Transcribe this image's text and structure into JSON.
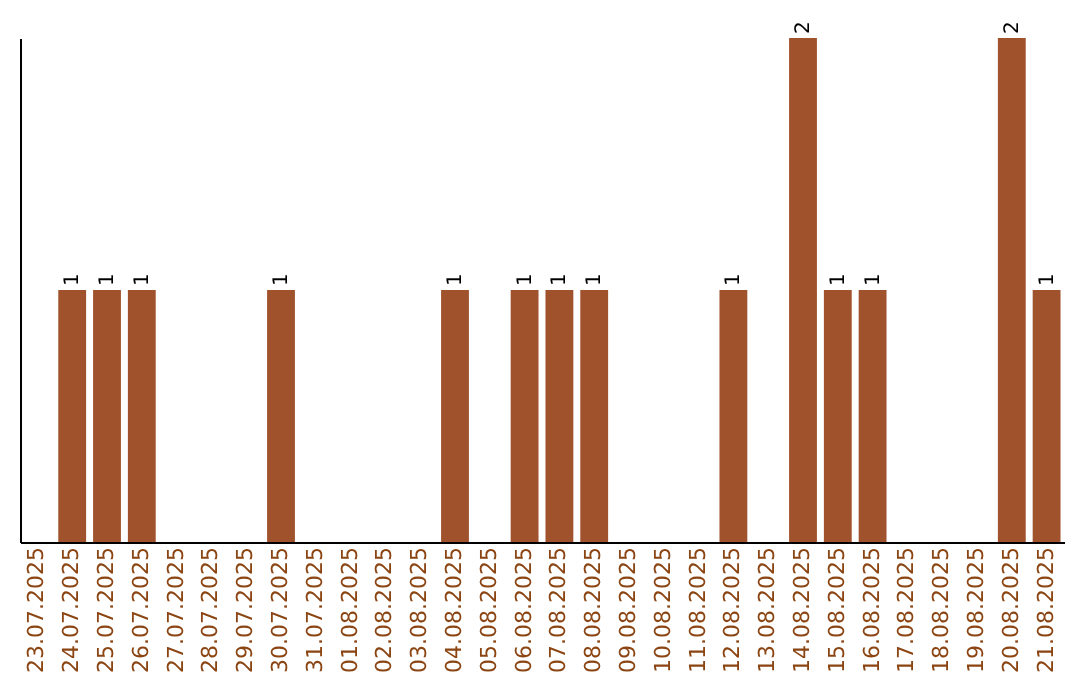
{
  "chart_data": {
    "type": "bar",
    "categories": [
      "23.07.2025",
      "24.07.2025",
      "25.07.2025",
      "26.07.2025",
      "27.07.2025",
      "28.07.2025",
      "29.07.2025",
      "30.07.2025",
      "31.07.2025",
      "01.08.2025",
      "02.08.2025",
      "03.08.2025",
      "04.08.2025",
      "05.08.2025",
      "06.08.2025",
      "07.08.2025",
      "08.08.2025",
      "09.08.2025",
      "10.08.2025",
      "11.08.2025",
      "12.08.2025",
      "13.08.2025",
      "14.08.2025",
      "15.08.2025",
      "16.08.2025",
      "17.08.2025",
      "18.08.2025",
      "19.08.2025",
      "20.08.2025",
      "21.08.2025"
    ],
    "values": [
      0,
      1,
      1,
      1,
      0,
      0,
      0,
      1,
      0,
      0,
      0,
      0,
      1,
      0,
      1,
      1,
      1,
      0,
      0,
      0,
      1,
      0,
      2,
      1,
      1,
      0,
      0,
      0,
      2,
      1
    ],
    "value_labels": [
      null,
      "1",
      "1",
      "1",
      null,
      null,
      null,
      "1",
      null,
      null,
      null,
      null,
      "1",
      null,
      "1",
      "1",
      "1",
      null,
      null,
      null,
      "1",
      null,
      "2",
      "1",
      "1",
      null,
      null,
      null,
      "2",
      "1"
    ],
    "color": "#a0522d",
    "ylim": [
      0,
      2
    ],
    "tick_labels": "x",
    "grid": false
  }
}
